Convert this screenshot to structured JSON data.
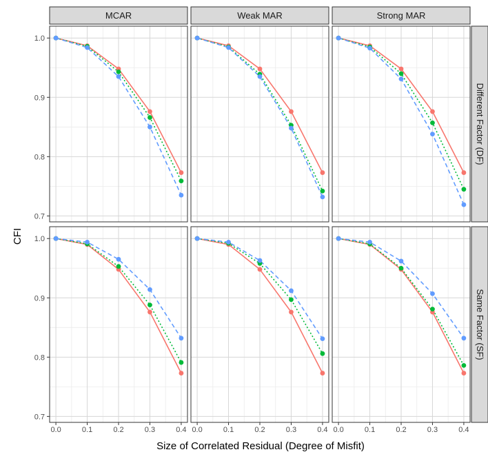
{
  "chart_data": {
    "type": "line",
    "ylabel": "CFI",
    "xlabel": "Size of Correlated Residual (Degree of Misfit)",
    "x": [
      0.0,
      0.1,
      0.2,
      0.3,
      0.4
    ],
    "x_tick_labels": [
      "0.0",
      "0.1",
      "0.2",
      "0.3",
      "0.4"
    ],
    "y_ticks": [
      0.7,
      0.8,
      0.9,
      1.0
    ],
    "y_tick_labels": [
      "0.7",
      "0.8",
      "0.9",
      "1.0"
    ],
    "xlim": [
      -0.02,
      0.42
    ],
    "ylim": [
      0.69,
      1.02
    ],
    "grid": true,
    "legend": "none",
    "columns": [
      "MCAR",
      "Weak MAR",
      "Strong MAR"
    ],
    "rows": [
      "Different Factor (DF)",
      "Same Factor (SF)"
    ],
    "series_styles": [
      {
        "color": "#F8766D",
        "dash": "solid"
      },
      {
        "color": "#00BA38",
        "dash": "dotted"
      },
      {
        "color": "#619CFF",
        "dash": "dashed"
      }
    ],
    "panels": [
      {
        "column": "MCAR",
        "row": "Different Factor (DF)",
        "series": [
          {
            "values": [
              1.0,
              0.987,
              0.948,
              0.876,
              0.773
            ]
          },
          {
            "values": [
              1.0,
              0.986,
              0.943,
              0.866,
              0.759
            ]
          },
          {
            "values": [
              1.0,
              0.984,
              0.935,
              0.85,
              0.735
            ]
          }
        ]
      },
      {
        "column": "Weak MAR",
        "row": "Different Factor (DF)",
        "series": [
          {
            "values": [
              1.0,
              0.987,
              0.948,
              0.876,
              0.773
            ]
          },
          {
            "values": [
              1.0,
              0.985,
              0.939,
              0.853,
              0.742
            ]
          },
          {
            "values": [
              1.0,
              0.984,
              0.935,
              0.848,
              0.732
            ]
          }
        ]
      },
      {
        "column": "Strong MAR",
        "row": "Different Factor (DF)",
        "series": [
          {
            "values": [
              1.0,
              0.987,
              0.948,
              0.876,
              0.773
            ]
          },
          {
            "values": [
              1.0,
              0.985,
              0.94,
              0.857,
              0.745
            ]
          },
          {
            "values": [
              1.0,
              0.983,
              0.931,
              0.838,
              0.719
            ]
          }
        ]
      },
      {
        "column": "MCAR",
        "row": "Same Factor (SF)",
        "series": [
          {
            "values": [
              1.0,
              0.99,
              0.948,
              0.876,
              0.773
            ]
          },
          {
            "values": [
              1.0,
              0.991,
              0.953,
              0.888,
              0.791
            ]
          },
          {
            "values": [
              1.0,
              0.994,
              0.965,
              0.914,
              0.832
            ]
          }
        ]
      },
      {
        "column": "Weak MAR",
        "row": "Same Factor (SF)",
        "series": [
          {
            "values": [
              1.0,
              0.99,
              0.948,
              0.876,
              0.773
            ]
          },
          {
            "values": [
              1.0,
              0.992,
              0.958,
              0.897,
              0.806
            ]
          },
          {
            "values": [
              1.0,
              0.994,
              0.963,
              0.912,
              0.831
            ]
          }
        ]
      },
      {
        "column": "Strong MAR",
        "row": "Same Factor (SF)",
        "series": [
          {
            "values": [
              1.0,
              0.99,
              0.948,
              0.876,
              0.773
            ]
          },
          {
            "values": [
              1.0,
              0.991,
              0.95,
              0.881,
              0.786
            ]
          },
          {
            "values": [
              1.0,
              0.994,
              0.962,
              0.907,
              0.832
            ]
          }
        ]
      }
    ]
  }
}
